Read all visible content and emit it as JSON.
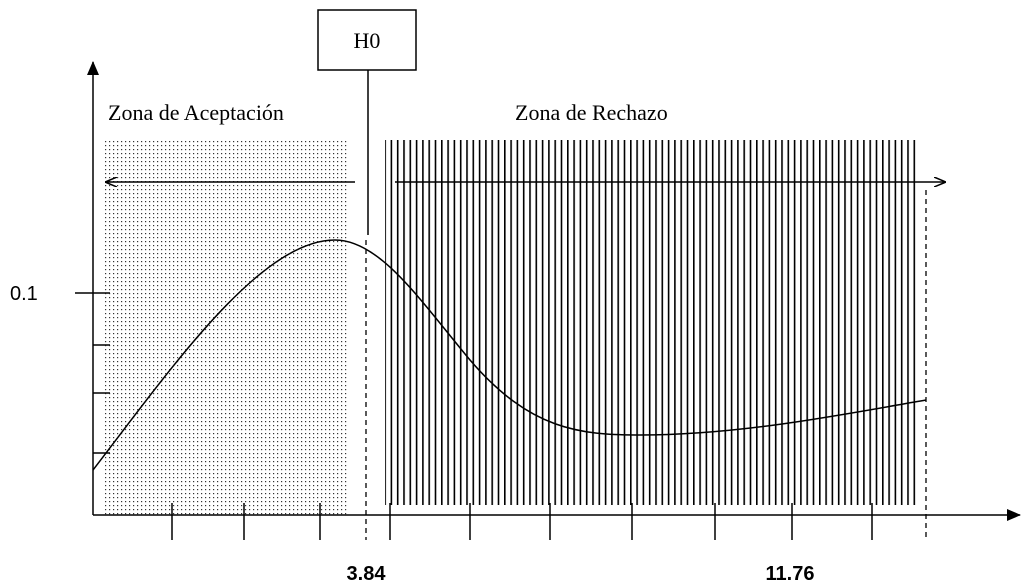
{
  "h0_box": {
    "label": "H0"
  },
  "zones": {
    "acceptance": "Zona de Aceptación",
    "rejection": "Zona de Rechazo"
  },
  "y_axis": {
    "tick_label": "0.1"
  },
  "x_axis": {
    "critical_value": "3.84",
    "upper_value": "11.76"
  }
}
